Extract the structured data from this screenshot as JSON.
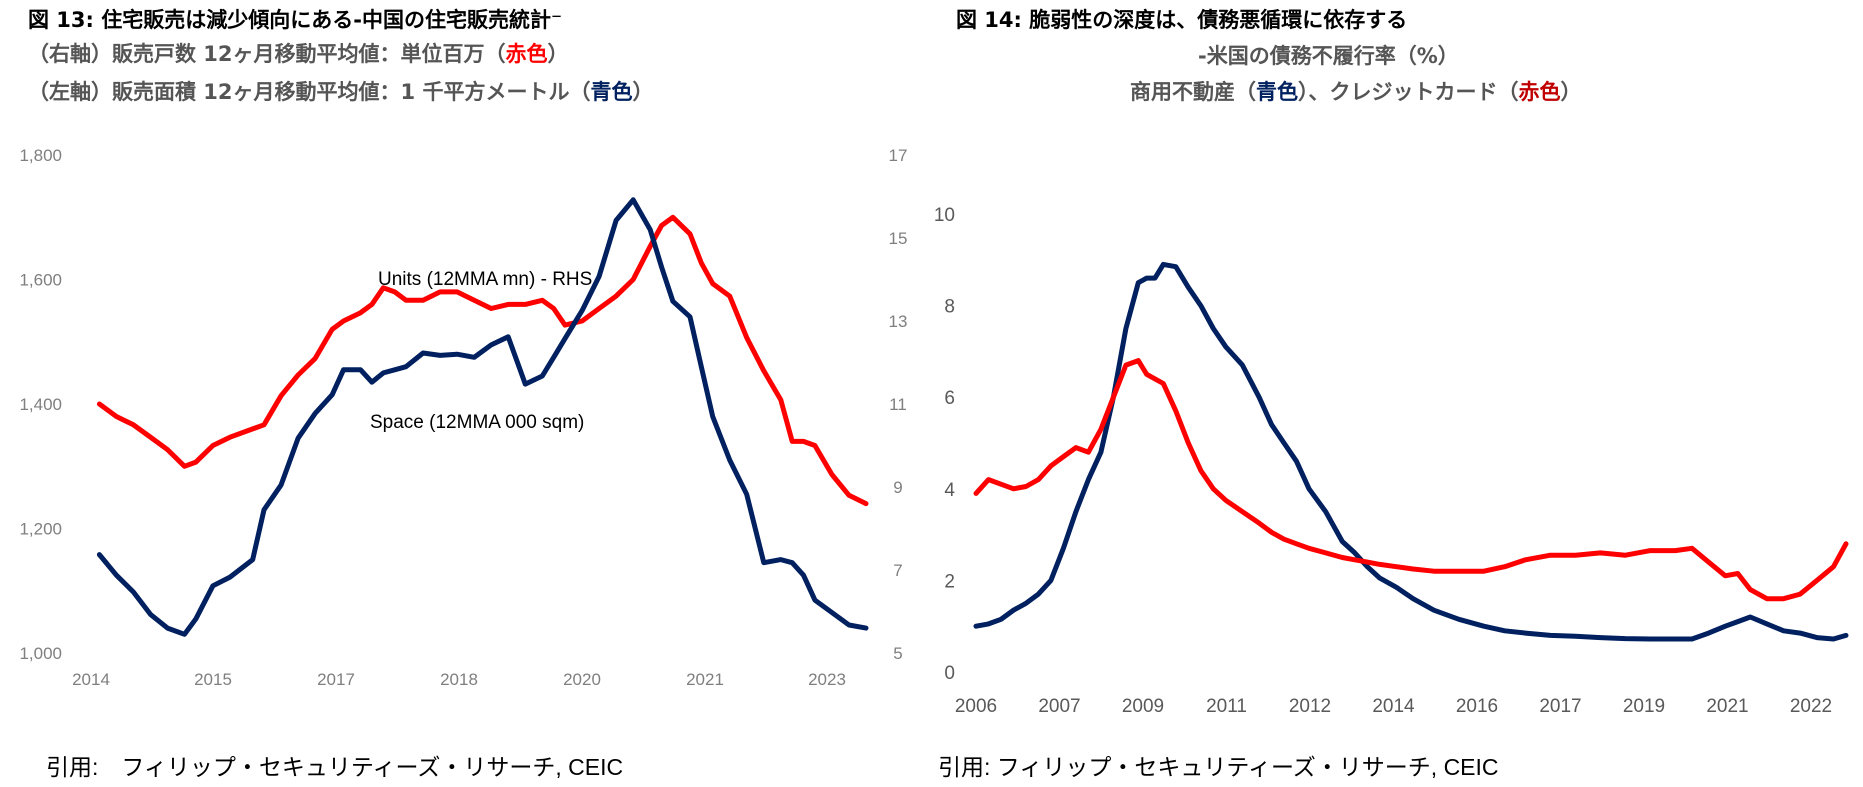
{
  "charts_header": {
    "left": {
      "title": "図 13: 住宅販売は減少傾向にある-中国の住宅販売統計⁻",
      "line2_prefix": "（右軸）販売戸数 12ヶ月移動平均値：単位百万",
      "line2_open": "（",
      "line2_color_word": "赤色",
      "line2_close": "）",
      "line3_prefix": "（左軸）販売面積 12ヶ月移動平均値：1 千平方メートル",
      "line3_open": "（",
      "line3_color_word": "青色",
      "line3_close": "）"
    },
    "right": {
      "title": "図 14: 脆弱性の深度は、債務悪循環に依存する",
      "line2": "-米国の債務不履行率（%）",
      "line3_a": "商用不動産（",
      "line3_blue": "青色",
      "line3_b": "）、クレジットカード（",
      "line3_red": "赤色",
      "line3_c": "）"
    }
  },
  "sources": {
    "left": "引用:　フィリップ・セキュリティーズ・リサーチ, CEIC",
    "right": "引用: フィリップ・セキュリティーズ・リサーチ, CEIC"
  },
  "colors": {
    "red": "#ff0000",
    "navy": "#002060",
    "axis_text": "#7f7f7f"
  },
  "chart_data": [
    {
      "type": "line",
      "title": "住宅販売は減少傾向にある-中国の住宅販売統計",
      "xlabel": "",
      "x_tick_labels": [
        "2014",
        "2015",
        "2017",
        "2018",
        "2020",
        "2021",
        "2023"
      ],
      "x_tick_values": [
        2014.0,
        2015.0,
        2016.0,
        2017.0,
        2018.0,
        2019.0,
        2020.0
      ],
      "xlim": [
        2013.9,
        2020.75
      ],
      "y_left": {
        "label": "Space (12MMA 000 sqm)",
        "ylim": [
          1000,
          1800
        ],
        "ticks": [
          "1,000",
          "1,200",
          "1,400",
          "1,600",
          "1,800"
        ],
        "tick_values": [
          1000,
          1200,
          1400,
          1600,
          1800
        ]
      },
      "y_right": {
        "label": "Units (12MMA mn) - RHS",
        "ylim": [
          5,
          17
        ],
        "ticks": [
          "5",
          "7",
          "9",
          "11",
          "13",
          "15",
          "17"
        ],
        "tick_values": [
          5,
          7,
          9,
          11,
          13,
          15,
          17
        ]
      },
      "grid": false,
      "legend": "inline-annotations",
      "annotations": [
        "Units (12MMA mn) - RHS",
        "Space (12MMA 000 sqm)"
      ],
      "series": [
        {
          "name": "Units (12MMA mn) - RHS",
          "axis": "right",
          "color": "#ff0000",
          "x": [
            2014.0,
            2014.15,
            2014.3,
            2014.45,
            2014.6,
            2014.75,
            2014.85,
            2015.0,
            2015.15,
            2015.35,
            2015.45,
            2015.6,
            2015.75,
            2015.9,
            2016.05,
            2016.15,
            2016.3,
            2016.4,
            2016.5,
            2016.6,
            2016.7,
            2016.85,
            2017.0,
            2017.15,
            2017.3,
            2017.45,
            2017.6,
            2017.75,
            2017.9,
            2018.0,
            2018.1,
            2018.25,
            2018.4,
            2018.55,
            2018.7,
            2018.85,
            2018.95,
            2019.05,
            2019.2,
            2019.3,
            2019.4,
            2019.55,
            2019.7,
            2019.85,
            2020.0,
            2020.1,
            2020.2,
            2020.3,
            2020.45,
            2020.6,
            2020.75
          ],
          "values": [
            11.0,
            10.7,
            10.5,
            10.2,
            9.9,
            9.5,
            9.6,
            10.0,
            10.2,
            10.4,
            10.5,
            11.2,
            11.7,
            12.1,
            12.8,
            13.0,
            13.2,
            13.4,
            13.8,
            13.7,
            13.5,
            13.5,
            13.7,
            13.7,
            13.5,
            13.3,
            13.4,
            13.4,
            13.5,
            13.3,
            12.9,
            13.0,
            13.3,
            13.6,
            14.0,
            14.8,
            15.3,
            15.5,
            15.1,
            14.4,
            13.9,
            13.6,
            12.6,
            11.8,
            11.1,
            10.1,
            10.1,
            10.0,
            9.3,
            8.8,
            8.6
          ]
        },
        {
          "name": "Space (12MMA 000 sqm)",
          "axis": "left",
          "color": "#002060",
          "x": [
            2014.0,
            2014.15,
            2014.3,
            2014.45,
            2014.6,
            2014.75,
            2014.85,
            2015.0,
            2015.15,
            2015.35,
            2015.45,
            2015.6,
            2015.75,
            2015.9,
            2016.05,
            2016.15,
            2016.3,
            2016.4,
            2016.5,
            2016.6,
            2016.7,
            2016.85,
            2017.0,
            2017.15,
            2017.3,
            2017.45,
            2017.6,
            2017.75,
            2017.9,
            2018.0,
            2018.1,
            2018.25,
            2018.4,
            2018.55,
            2018.7,
            2018.85,
            2018.95,
            2019.05,
            2019.2,
            2019.3,
            2019.4,
            2019.55,
            2019.7,
            2019.85,
            2020.0,
            2020.1,
            2020.2,
            2020.3,
            2020.45,
            2020.6,
            2020.75
          ],
          "values": [
            1158,
            1125,
            1098,
            1062,
            1040,
            1030,
            1055,
            1108,
            1122,
            1150,
            1230,
            1270,
            1345,
            1385,
            1415,
            1455,
            1455,
            1435,
            1450,
            1455,
            1460,
            1482,
            1478,
            1480,
            1475,
            1495,
            1508,
            1432,
            1445,
            1475,
            1505,
            1550,
            1605,
            1695,
            1728,
            1680,
            1620,
            1565,
            1540,
            1460,
            1380,
            1310,
            1255,
            1145,
            1150,
            1145,
            1125,
            1085,
            1065,
            1045,
            1040
          ]
        }
      ]
    },
    {
      "type": "line",
      "title": "米国の債務不履行率（%）",
      "xlabel": "",
      "x_tick_labels": [
        "2006",
        "2007",
        "2009",
        "2011",
        "2012",
        "2014",
        "2016",
        "2017",
        "2019",
        "2021",
        "2022"
      ],
      "x_tick_values": [
        0,
        1,
        2,
        3,
        4,
        5,
        6,
        7,
        8,
        9,
        10
      ],
      "xlim": [
        0,
        10.45
      ],
      "ylabel": "",
      "ylim": [
        0,
        10
      ],
      "y_ticks": [
        "0",
        "2",
        "4",
        "6",
        "8",
        "10"
      ],
      "y_tick_values": [
        0,
        2,
        4,
        6,
        8,
        10
      ],
      "grid": false,
      "legend": "none",
      "series": [
        {
          "name": "商用不動産",
          "color": "#002060",
          "x": [
            0,
            0.15,
            0.3,
            0.45,
            0.6,
            0.75,
            0.9,
            1.05,
            1.2,
            1.35,
            1.5,
            1.65,
            1.8,
            1.95,
            2.05,
            2.15,
            2.25,
            2.4,
            2.55,
            2.7,
            2.85,
            3.0,
            3.2,
            3.4,
            3.55,
            3.7,
            3.85,
            4.0,
            4.2,
            4.4,
            4.55,
            4.7,
            4.85,
            5.05,
            5.25,
            5.5,
            5.8,
            6.1,
            6.35,
            6.6,
            6.9,
            7.2,
            7.5,
            7.8,
            8.1,
            8.4,
            8.6,
            8.8,
            9.0,
            9.15,
            9.3,
            9.5,
            9.7,
            9.9,
            10.1,
            10.3,
            10.45
          ],
          "values": [
            1.0,
            1.05,
            1.15,
            1.35,
            1.5,
            1.7,
            2.0,
            2.7,
            3.5,
            4.2,
            4.8,
            6.0,
            7.5,
            8.5,
            8.6,
            8.6,
            8.9,
            8.85,
            8.4,
            8.0,
            7.5,
            7.1,
            6.7,
            6.0,
            5.4,
            5.0,
            4.6,
            4.0,
            3.5,
            2.85,
            2.6,
            2.3,
            2.05,
            1.85,
            1.6,
            1.35,
            1.15,
            1.0,
            0.9,
            0.85,
            0.8,
            0.78,
            0.75,
            0.73,
            0.72,
            0.72,
            0.72,
            0.85,
            1.0,
            1.1,
            1.2,
            1.05,
            0.9,
            0.85,
            0.75,
            0.72,
            0.8
          ]
        },
        {
          "name": "クレジットカード",
          "color": "#ff0000",
          "x": [
            0,
            0.15,
            0.3,
            0.45,
            0.6,
            0.75,
            0.9,
            1.05,
            1.2,
            1.35,
            1.5,
            1.65,
            1.8,
            1.95,
            2.05,
            2.15,
            2.25,
            2.4,
            2.55,
            2.7,
            2.85,
            3.0,
            3.2,
            3.4,
            3.55,
            3.7,
            3.85,
            4.0,
            4.2,
            4.4,
            4.55,
            4.7,
            4.85,
            5.05,
            5.25,
            5.5,
            5.8,
            6.1,
            6.35,
            6.6,
            6.9,
            7.2,
            7.5,
            7.8,
            8.1,
            8.4,
            8.6,
            8.8,
            9.0,
            9.15,
            9.3,
            9.5,
            9.7,
            9.9,
            10.1,
            10.3,
            10.45
          ],
          "values": [
            3.9,
            4.2,
            4.1,
            4.0,
            4.05,
            4.2,
            4.5,
            4.7,
            4.9,
            4.8,
            5.3,
            6.0,
            6.7,
            6.8,
            6.5,
            6.4,
            6.3,
            5.7,
            5.0,
            4.4,
            4.0,
            3.75,
            3.5,
            3.25,
            3.05,
            2.9,
            2.8,
            2.7,
            2.6,
            2.5,
            2.45,
            2.4,
            2.35,
            2.3,
            2.25,
            2.2,
            2.2,
            2.2,
            2.3,
            2.45,
            2.55,
            2.55,
            2.6,
            2.55,
            2.65,
            2.65,
            2.7,
            2.4,
            2.1,
            2.15,
            1.8,
            1.6,
            1.6,
            1.7,
            2.0,
            2.3,
            2.8
          ]
        }
      ]
    }
  ]
}
